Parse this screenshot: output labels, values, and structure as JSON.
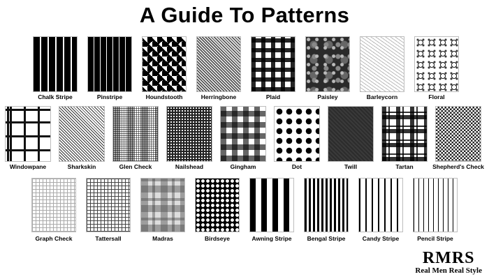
{
  "title": "A Guide To Patterns",
  "rows": [
    {
      "tiles": [
        {
          "label": "Chalk Stripe",
          "pattern": "p-chalk"
        },
        {
          "label": "Pinstripe",
          "pattern": "p-pin"
        },
        {
          "label": "Houndstooth",
          "pattern": "p-hound"
        },
        {
          "label": "Herringbone",
          "pattern": "p-herring"
        },
        {
          "label": "Plaid",
          "pattern": "p-plaid"
        },
        {
          "label": "Paisley",
          "pattern": "p-paisley"
        },
        {
          "label": "Barleycorn",
          "pattern": "p-barley"
        },
        {
          "label": "Floral",
          "pattern": "p-floral"
        }
      ]
    },
    {
      "tiles": [
        {
          "label": "Windowpane",
          "pattern": "p-window"
        },
        {
          "label": "Sharkskin",
          "pattern": "p-shark"
        },
        {
          "label": "Glen Check",
          "pattern": "p-glen"
        },
        {
          "label": "Nailshead",
          "pattern": "p-nail"
        },
        {
          "label": "Gingham",
          "pattern": "p-gingham"
        },
        {
          "label": "Dot",
          "pattern": "p-dot"
        },
        {
          "label": "Twill",
          "pattern": "p-twill"
        },
        {
          "label": "Tartan",
          "pattern": "p-tartan"
        },
        {
          "label": "Shepherd's Check",
          "pattern": "p-shepherd"
        }
      ]
    },
    {
      "tiles": [
        {
          "label": "Graph Check",
          "pattern": "p-graph"
        },
        {
          "label": "Tattersall",
          "pattern": "p-tatter"
        },
        {
          "label": "Madras",
          "pattern": "p-madras"
        },
        {
          "label": "Birdseye",
          "pattern": "p-birds"
        },
        {
          "label": "Awning Stripe",
          "pattern": "p-awning"
        },
        {
          "label": "Bengal Stripe",
          "pattern": "p-bengal"
        },
        {
          "label": "Candy Stripe",
          "pattern": "p-candy"
        },
        {
          "label": "Pencil Stripe",
          "pattern": "p-pencil"
        }
      ]
    }
  ],
  "logo": {
    "mark": "RMRS",
    "subtitle": "Real Men Real Style"
  }
}
